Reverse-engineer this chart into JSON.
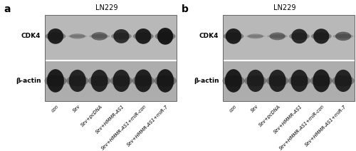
{
  "panel_a_label": "a",
  "panel_b_label": "b",
  "cell_line": "LN229",
  "row_labels": [
    "CDK4",
    "β-actin"
  ],
  "x_labels": [
    "con",
    "Sev",
    "Sev+pcDNA",
    "Sev+HMMR-AS1",
    "Sev+HMMR-AS1+miR-con",
    "Sev+HMMR-AS1+miR-7"
  ],
  "box_bg": "#b5b5b5",
  "box_bg2": "#a8a8a8",
  "panel_bg": "#ffffff",
  "divider_color": "#ffffff",
  "cdk4_bands_a": [
    0.9,
    0.3,
    0.48,
    0.82,
    0.9,
    0.98
  ],
  "actin_bands_a": [
    0.92,
    0.88,
    0.88,
    0.88,
    0.9,
    0.92
  ],
  "cdk4_bands_b": [
    0.9,
    0.28,
    0.45,
    0.85,
    0.88,
    0.52
  ],
  "actin_bands_b": [
    0.92,
    0.88,
    0.88,
    0.88,
    0.9,
    0.88
  ],
  "figsize": [
    5.0,
    2.12
  ],
  "dpi": 100
}
